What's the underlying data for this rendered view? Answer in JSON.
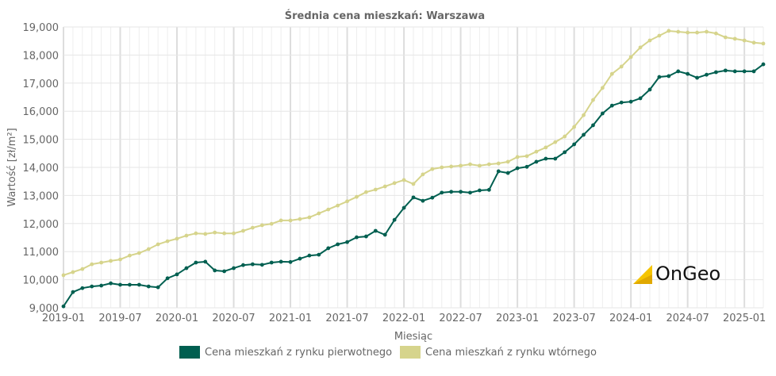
{
  "chart_data": {
    "type": "line",
    "title": "Średnia cena mieszkań: Warszawa",
    "xlabel": "Miesiąc",
    "ylabel": "Wartość [zł/m²]",
    "ylim": [
      9000,
      19000
    ],
    "yticks": [
      "9,000",
      "10,000",
      "11,000",
      "12,000",
      "13,000",
      "14,000",
      "15,000",
      "16,000",
      "17,000",
      "18,000",
      "19,000"
    ],
    "xticks": [
      "2019-01",
      "2019-07",
      "2020-01",
      "2020-07",
      "2021-01",
      "2021-07",
      "2022-01",
      "2022-07",
      "2023-01",
      "2023-07",
      "2024-01",
      "2024-07",
      "2025-01"
    ],
    "xrange": [
      "2019-01",
      "2025-03"
    ],
    "grid": true,
    "legend_position": "bottom",
    "series": [
      {
        "name": "Cena mieszkań z rynku pierwotnego",
        "color": "#005f50",
        "values": [
          9050,
          9560,
          9700,
          9760,
          9790,
          9870,
          9820,
          9820,
          9820,
          9760,
          9730,
          10050,
          10190,
          10410,
          10610,
          10640,
          10330,
          10300,
          10410,
          10520,
          10550,
          10530,
          10610,
          10640,
          10630,
          10750,
          10860,
          10890,
          11120,
          11260,
          11340,
          11510,
          11540,
          11740,
          11600,
          12130,
          12560,
          12930,
          12810,
          12920,
          13100,
          13130,
          13130,
          13100,
          13180,
          13200,
          13860,
          13800,
          13970,
          14020,
          14200,
          14310,
          14310,
          14540,
          14820,
          15160,
          15500,
          15920,
          16200,
          16310,
          16340,
          16460,
          16770,
          17220,
          17250,
          17420,
          17330,
          17190,
          17300,
          17390,
          17450,
          17420,
          17420,
          17420,
          17670
        ]
      },
      {
        "name": "Cena mieszkań z rynku wtórnego",
        "color": "#d6d48c",
        "values": [
          10160,
          10270,
          10380,
          10550,
          10610,
          10670,
          10720,
          10860,
          10950,
          11090,
          11260,
          11370,
          11460,
          11570,
          11650,
          11630,
          11680,
          11650,
          11650,
          11740,
          11850,
          11940,
          11990,
          12110,
          12110,
          12160,
          12220,
          12360,
          12500,
          12640,
          12790,
          12950,
          13120,
          13210,
          13320,
          13440,
          13550,
          13410,
          13750,
          13940,
          14000,
          14030,
          14060,
          14110,
          14060,
          14110,
          14140,
          14200,
          14370,
          14400,
          14560,
          14710,
          14900,
          15100,
          15440,
          15860,
          16400,
          16830,
          17330,
          17590,
          17930,
          18270,
          18520,
          18690,
          18860,
          18830,
          18800,
          18800,
          18830,
          18770,
          18630,
          18580,
          18520,
          18440,
          18410
        ]
      }
    ]
  },
  "logo": {
    "text": "OnGeo",
    "accent": "#f5c400"
  }
}
